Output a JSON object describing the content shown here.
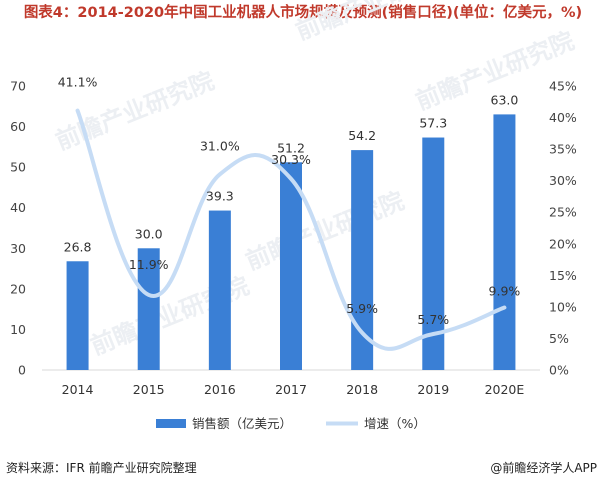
{
  "title": "图表4：2014-2020年中国工业机器人市场规模及预测(销售口径)(单位：亿美元，%)",
  "source": "资料来源：IFR 前瞻产业研究院整理",
  "brand": "@前瞻经济学人APP",
  "watermark": "前瞻产业研究院",
  "colors": {
    "bar": "#3a7fd5",
    "line": "#c6dcf5",
    "title": "#c0392b"
  },
  "chart_data": {
    "type": "bar+line",
    "categories": [
      "2014",
      "2015",
      "2016",
      "2017",
      "2018",
      "2019",
      "2020E"
    ],
    "series": [
      {
        "name": "销售额（亿美元）",
        "type": "bar",
        "axis": "left",
        "values": [
          26.8,
          30.0,
          39.3,
          51.2,
          54.2,
          57.3,
          63.0
        ],
        "labels": [
          "26.8",
          "30.0",
          "39.3",
          "51.2",
          "54.2",
          "57.3",
          "63.0"
        ]
      },
      {
        "name": "增速（%）",
        "type": "line",
        "axis": "right",
        "values": [
          41.1,
          11.9,
          31.0,
          30.3,
          5.9,
          5.7,
          9.9
        ],
        "labels": [
          "41.1%",
          "11.9%",
          "31.0%",
          "30.3%",
          "5.9%",
          "5.7%",
          "9.9%"
        ]
      }
    ],
    "y_left": {
      "min": 0,
      "max": 70,
      "ticks": [
        "0",
        "10",
        "20",
        "30",
        "40",
        "50",
        "60",
        "70"
      ]
    },
    "y_right": {
      "min": 0,
      "max": 45,
      "ticks": [
        "0%",
        "5%",
        "10%",
        "15%",
        "20%",
        "25%",
        "30%",
        "35%",
        "40%",
        "45%"
      ]
    },
    "legend": {
      "position": "bottom",
      "items": [
        "销售额（亿美元）",
        "增速（%）"
      ]
    }
  }
}
